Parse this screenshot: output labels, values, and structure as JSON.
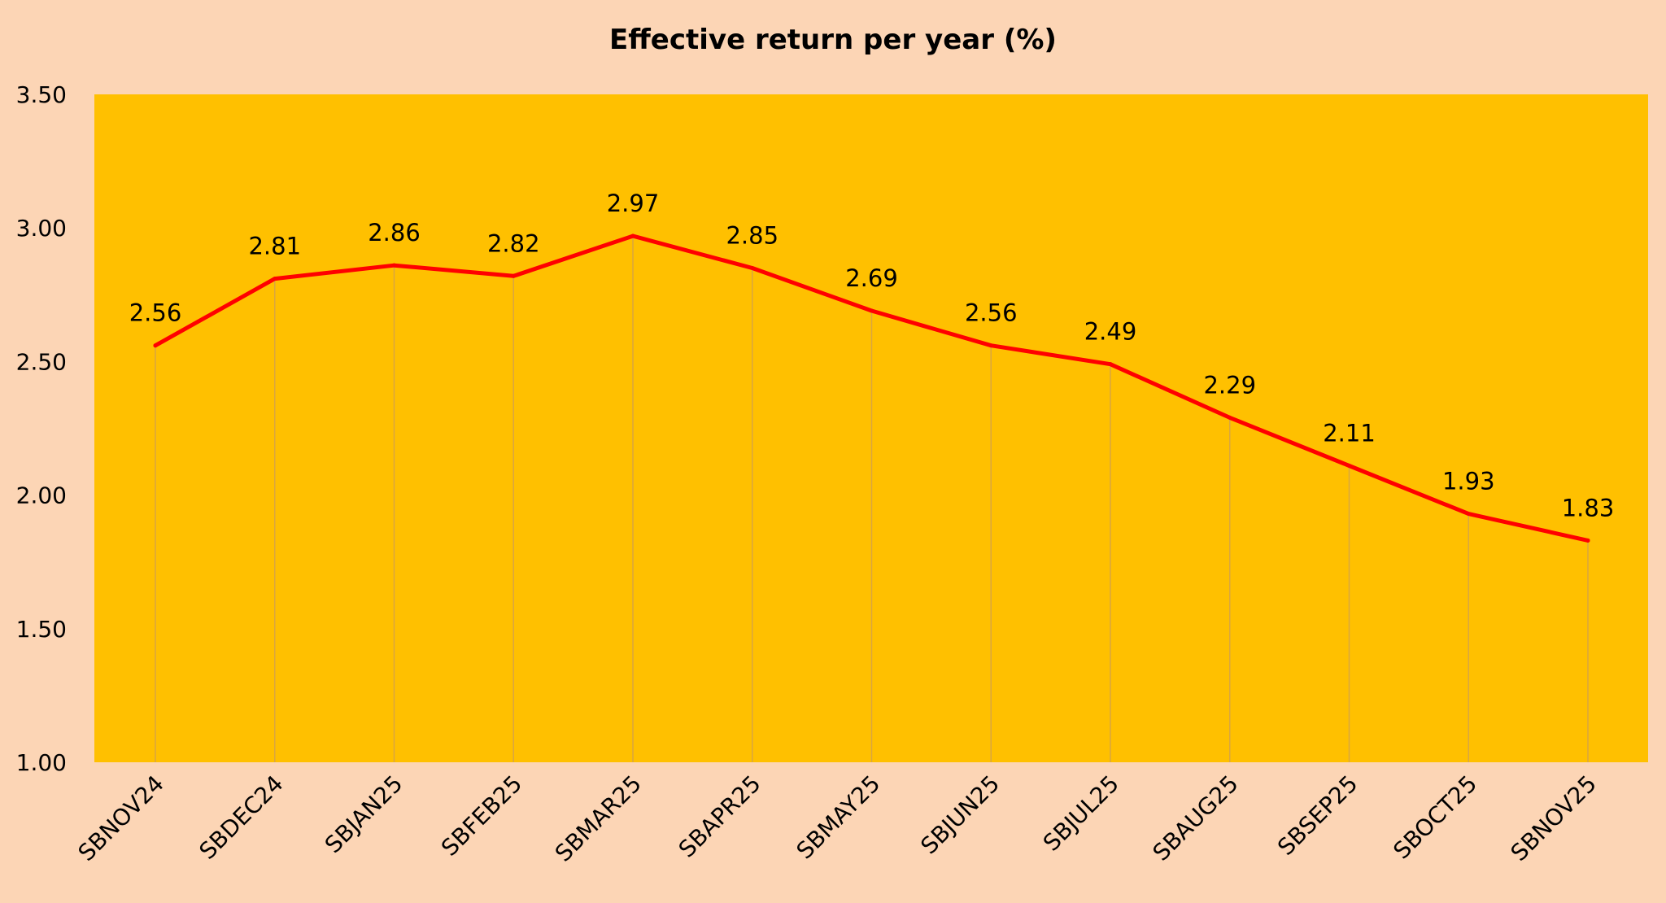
{
  "colors": {
    "page_background": "#FCD5B5",
    "plot_background": "#FFC000",
    "line": "#FF0000",
    "drop_line": "#D9A640"
  },
  "chart_data": {
    "type": "line",
    "title": "Effective return per year (%)",
    "xlabel": "",
    "ylabel": "",
    "categories": [
      "SBNOV24",
      "SBDEC24",
      "SBJAN25",
      "SBFEB25",
      "SBMAR25",
      "SBAPR25",
      "SBMAY25",
      "SBJUN25",
      "SBJUL25",
      "SBAUG25",
      "SBSEP25",
      "SBOCT25",
      "SBNOV25"
    ],
    "series": [
      {
        "values": [
          2.56,
          2.81,
          2.86,
          2.82,
          2.97,
          2.85,
          2.69,
          2.56,
          2.49,
          2.29,
          2.11,
          1.93,
          1.83
        ],
        "color": "#FF0000",
        "data_labels": [
          "2.56",
          "2.81",
          "2.86",
          "2.82",
          "2.97",
          "2.85",
          "2.69",
          "2.56",
          "2.49",
          "2.29",
          "2.11",
          "1.93",
          "1.83"
        ]
      }
    ],
    "ylim": [
      1.0,
      3.5
    ],
    "yticks": [
      "1.00",
      "1.50",
      "2.00",
      "2.50",
      "3.00",
      "3.50"
    ],
    "drop_lines": true,
    "grid": false,
    "legend": "none"
  }
}
